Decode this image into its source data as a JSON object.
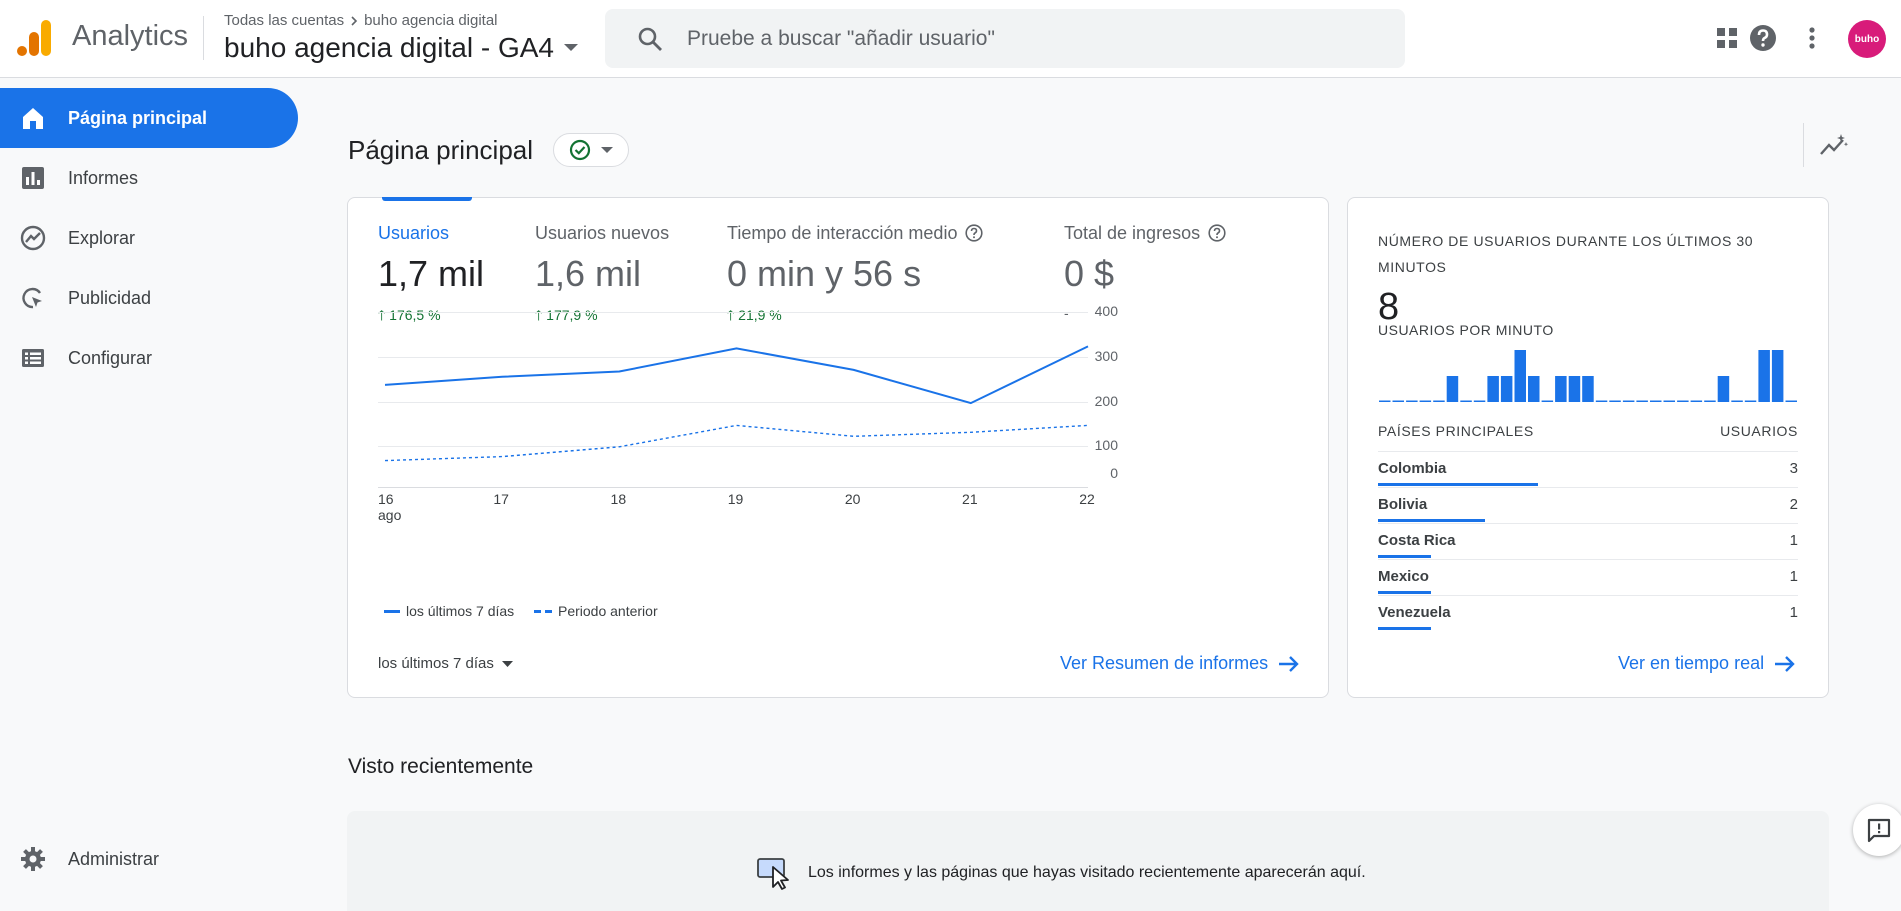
{
  "header": {
    "app_name": "Analytics",
    "breadcrumb_account": "Todas las cuentas",
    "breadcrumb_property": "buho agencia digital",
    "property_name": "buho agencia digital - GA4",
    "search_placeholder": "Pruebe a buscar \"añadir usuario\"",
    "icons": [
      "apps-grid-icon",
      "help-icon",
      "more-vert-icon"
    ],
    "avatar_text": "buho"
  },
  "sidebar": {
    "items": [
      {
        "label": "Página principal",
        "icon": "home-icon",
        "active": true
      },
      {
        "label": "Informes",
        "icon": "bar-chart-icon",
        "active": false
      },
      {
        "label": "Explorar",
        "icon": "explore-icon",
        "active": false
      },
      {
        "label": "Publicidad",
        "icon": "ads-icon",
        "active": false
      },
      {
        "label": "Configurar",
        "icon": "list-icon",
        "active": false
      }
    ],
    "admin_label": "Administrar"
  },
  "main": {
    "page_title": "Página principal",
    "metrics": [
      {
        "label": "Usuarios",
        "value": "1,7 mil",
        "change": "176,5 %",
        "help": false
      },
      {
        "label": "Usuarios nuevos",
        "value": "1,6 mil",
        "change": "177,9 %",
        "help": false
      },
      {
        "label": "Tiempo de interacción medio",
        "value": "0 min y 56 s",
        "change": "21,9 %",
        "help": true
      },
      {
        "label": "Total de ingresos",
        "value": "0 $",
        "change": "-",
        "help": true
      }
    ],
    "legend_current": "los últimos 7 días",
    "legend_previous": "Periodo anterior",
    "range_label": "los últimos 7 días",
    "summary_link": "Ver Resumen de informes",
    "recent_title": "Visto recientemente",
    "recent_message": "Los informes y las páginas que hayas visitado recientemente aparecerán aquí."
  },
  "realtime": {
    "title": "NÚMERO DE USUARIOS DURANTE LOS ÚLTIMOS 30 MINUTOS",
    "value": "8",
    "per_minute_label": "USUARIOS POR MINUTO",
    "per_minute": [
      0,
      0,
      0,
      0,
      0,
      1,
      0,
      0,
      1,
      1,
      2,
      1,
      0,
      1,
      1,
      1,
      0,
      0,
      0,
      0,
      0,
      0,
      0,
      0,
      0,
      1,
      0,
      0,
      2,
      2,
      0
    ],
    "countries_header": "PAÍSES PRINCIPALES",
    "users_header": "USUARIOS",
    "countries": [
      {
        "name": "Colombia",
        "users": "3",
        "share": 3
      },
      {
        "name": "Bolivia",
        "users": "2",
        "share": 2
      },
      {
        "name": "Costa Rica",
        "users": "1",
        "share": 1
      },
      {
        "name": "Mexico",
        "users": "1",
        "share": 1
      },
      {
        "name": "Venezuela",
        "users": "1",
        "share": 1
      }
    ],
    "link": "Ver en tiempo real"
  },
  "chart_data": {
    "type": "line",
    "x": [
      "16\nago",
      "17",
      "18",
      "19",
      "20",
      "21",
      "22"
    ],
    "x_labels": [
      "16",
      "17",
      "18",
      "19",
      "20",
      "21",
      "22"
    ],
    "x_sublabel": "ago",
    "ylim": [
      0,
      400
    ],
    "yticks": [
      "400",
      "300",
      "200",
      "100",
      "0"
    ],
    "grid": true,
    "legend": "bottom-left",
    "series": [
      {
        "name": "los últimos 7 días",
        "style": "solid",
        "color": "#1a73e8",
        "values": [
          225,
          245,
          258,
          315,
          262,
          180,
          320
        ]
      },
      {
        "name": "Periodo anterior",
        "style": "dashed",
        "color": "#1a73e8",
        "values": [
          38,
          48,
          72,
          125,
          98,
          108,
          125
        ]
      }
    ]
  },
  "colors": {
    "accent": "#1a73e8",
    "positive": "#137333",
    "avatar": "#d81b7a"
  }
}
